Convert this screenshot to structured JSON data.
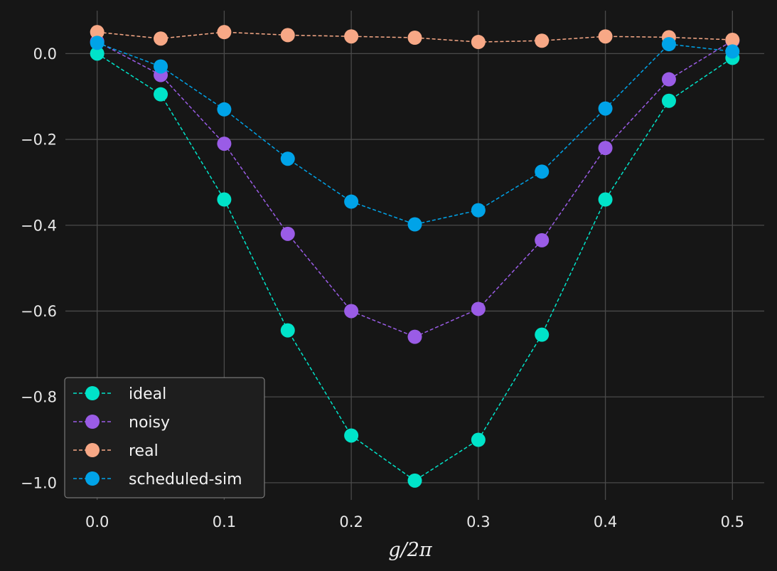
{
  "chart_data": {
    "type": "line",
    "title": "",
    "xlabel": "g/2π",
    "ylabel": "",
    "xlim": [
      -0.025,
      0.525
    ],
    "ylim": [
      -1.04,
      0.1
    ],
    "x_ticks": [
      0.0,
      0.1,
      0.2,
      0.3,
      0.4,
      0.5
    ],
    "x_tick_labels": [
      "0.0",
      "0.1",
      "0.2",
      "0.3",
      "0.4",
      "0.5"
    ],
    "y_ticks": [
      0.0,
      -0.2,
      -0.4,
      -0.6,
      -0.8,
      -1.0
    ],
    "y_tick_labels": [
      "0.0",
      "−0.2",
      "−0.4",
      "−0.6",
      "−0.8",
      "−1.0"
    ],
    "grid": true,
    "legend_position": "lower-left",
    "x": [
      0.0,
      0.05,
      0.1,
      0.15,
      0.2,
      0.25,
      0.3,
      0.35,
      0.4,
      0.45,
      0.5
    ],
    "series": [
      {
        "name": "ideal",
        "color": "#00e3c9",
        "values": [
          0.0,
          -0.095,
          -0.34,
          -0.645,
          -0.89,
          -0.995,
          -0.9,
          -0.655,
          -0.34,
          -0.11,
          -0.01
        ]
      },
      {
        "name": "noisy",
        "color": "#9a5ce6",
        "values": [
          0.028,
          -0.05,
          -0.21,
          -0.42,
          -0.6,
          -0.66,
          -0.595,
          -0.435,
          -0.22,
          -0.06,
          0.03
        ]
      },
      {
        "name": "real",
        "color": "#f7a886",
        "values": [
          0.05,
          0.035,
          0.05,
          0.043,
          0.04,
          0.037,
          0.027,
          0.03,
          0.04,
          0.038,
          0.032
        ]
      },
      {
        "name": "scheduled-sim",
        "color": "#00a3e8",
        "values": [
          0.025,
          -0.03,
          -0.13,
          -0.245,
          -0.345,
          -0.398,
          -0.365,
          -0.275,
          -0.128,
          0.022,
          0.005
        ]
      }
    ]
  }
}
